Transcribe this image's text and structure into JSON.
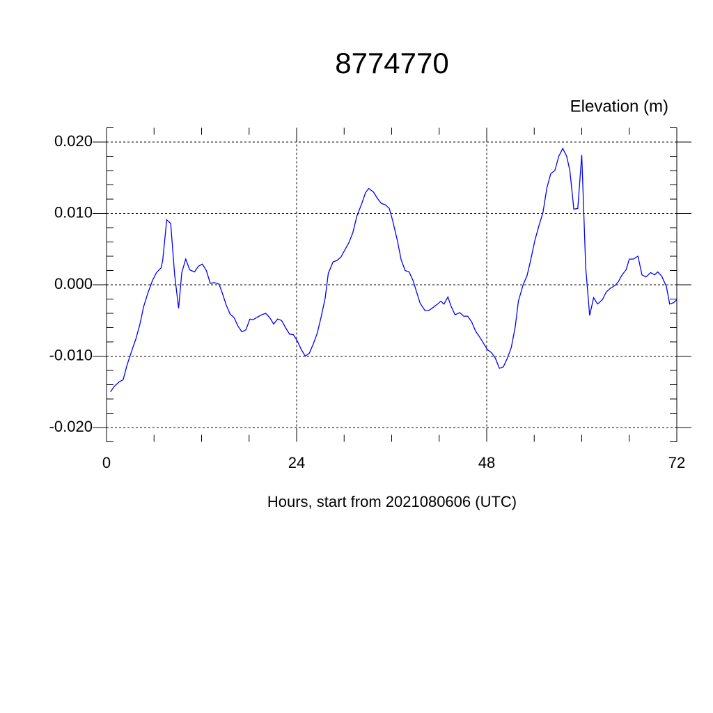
{
  "chart_data": {
    "type": "line",
    "title": "8774770",
    "ylabel": "Elevation (m)",
    "xlabel": "Hours, start from 2021080606 (UTC)",
    "xlim": [
      0,
      72
    ],
    "ylim": [
      -0.022,
      0.022
    ],
    "xticks": [
      0,
      24,
      48,
      72
    ],
    "yticks": [
      {
        "value": -0.02,
        "label": "-0.020"
      },
      {
        "value": -0.01,
        "label": "-0.010"
      },
      {
        "value": 0,
        "label": "0.000"
      },
      {
        "value": 0.01,
        "label": "0.010"
      },
      {
        "value": 0.02,
        "label": "0.020"
      }
    ],
    "xminorticks": [
      6,
      12,
      18,
      30,
      36,
      42,
      54,
      60,
      66
    ],
    "yminorticks": [
      -0.022,
      -0.018,
      -0.016,
      -0.014,
      -0.012,
      -0.008,
      -0.006,
      -0.004,
      -0.002,
      0.002,
      0.004,
      0.006,
      0.008,
      0.012,
      0.014,
      0.016,
      0.018,
      0.022
    ],
    "grid": true,
    "series": [
      {
        "color": "#0000ff",
        "x": [
          0.5,
          1.0,
          1.6,
          2.1,
          2.6,
          3.2,
          3.7,
          4.2,
          4.7,
          5.3,
          5.8,
          6.3,
          6.9,
          7.1,
          7.6,
          8.1,
          8.6,
          9.1,
          9.5,
          10.0,
          10.5,
          11.1,
          11.6,
          12.1,
          12.6,
          13.1,
          13.6,
          14.2,
          14.6,
          15.1,
          15.6,
          16.1,
          16.6,
          17.1,
          17.6,
          18.1,
          18.5,
          19.1,
          19.6,
          20.1,
          20.6,
          21.1,
          21.6,
          22.1,
          22.6,
          23.1,
          23.6,
          24.1,
          24.6,
          25.1,
          25.6,
          26.1,
          26.6,
          27.1,
          27.6,
          28.0,
          28.6,
          29.1,
          29.6,
          30.2,
          30.6,
          31.1,
          31.6,
          32.2,
          32.7,
          33.1,
          33.7,
          34.2,
          34.7,
          35.2,
          35.7,
          36.1,
          36.7,
          37.2,
          37.7,
          38.2,
          38.7,
          39.2,
          39.6,
          40.2,
          40.7,
          41.2,
          41.8,
          42.2,
          42.6,
          43.1,
          43.5,
          44.0,
          44.6,
          45.1,
          45.6,
          46.1,
          46.6,
          47.1,
          47.6,
          48.1,
          48.6,
          49.1,
          49.6,
          50.1,
          50.6,
          51.1,
          51.6,
          52.0,
          52.6,
          53.1,
          53.5,
          54.1,
          54.6,
          55.1,
          55.6,
          56.1,
          56.6,
          57.1,
          57.6,
          58.1,
          58.5,
          59.0,
          59.5,
          60.0,
          60.5,
          61.0,
          61.5,
          62.0,
          62.6,
          63.1,
          63.6,
          64.2,
          64.6,
          65.1,
          65.6,
          66.0,
          66.5,
          67.1,
          67.6,
          68.1,
          68.7,
          69.2,
          69.6,
          70.1,
          70.7,
          71.1,
          71.6,
          72.0
        ],
        "values": [
          -0.015,
          -0.0142,
          -0.0136,
          -0.0133,
          -0.0112,
          -0.0092,
          -0.0076,
          -0.0056,
          -0.003,
          -0.0009,
          0.0006,
          0.0017,
          0.0024,
          0.0035,
          0.0091,
          0.0086,
          0.0014,
          -0.0033,
          0.0017,
          0.0036,
          0.0021,
          0.0018,
          0.0026,
          0.0029,
          0.002,
          0.0002,
          0.0003,
          0.0001,
          -0.0011,
          -0.0028,
          -0.0041,
          -0.0046,
          -0.0058,
          -0.0066,
          -0.0063,
          -0.0048,
          -0.0049,
          -0.0045,
          -0.0042,
          -0.004,
          -0.0046,
          -0.0055,
          -0.0048,
          -0.005,
          -0.006,
          -0.0069,
          -0.007,
          -0.0079,
          -0.0091,
          -0.01,
          -0.0096,
          -0.0083,
          -0.0068,
          -0.0045,
          -0.0019,
          0.0016,
          0.0032,
          0.0034,
          0.0039,
          0.0051,
          0.0059,
          0.0073,
          0.0096,
          0.0113,
          0.0129,
          0.0135,
          0.013,
          0.0121,
          0.0114,
          0.0112,
          0.0107,
          0.0091,
          0.0063,
          0.0035,
          0.002,
          0.0018,
          0.0006,
          -0.0012,
          -0.0026,
          -0.0036,
          -0.0036,
          -0.0032,
          -0.0027,
          -0.0023,
          -0.0027,
          -0.0017,
          -0.003,
          -0.0042,
          -0.0039,
          -0.0044,
          -0.0044,
          -0.0052,
          -0.0065,
          -0.0073,
          -0.0082,
          -0.0091,
          -0.0095,
          -0.0103,
          -0.0117,
          -0.0115,
          -0.0103,
          -0.0088,
          -0.0059,
          -0.0023,
          0.0,
          0.0013,
          0.0032,
          0.0063,
          0.0083,
          0.0101,
          0.0136,
          0.0156,
          0.016,
          0.018,
          0.0191,
          0.018,
          0.016,
          0.0106,
          0.0107,
          0.0182,
          0.0024,
          -0.0043,
          -0.0018,
          -0.0027,
          -0.0021,
          -0.001,
          -0.0005,
          -0.0001,
          0.0004,
          0.0014,
          0.0021,
          0.0036,
          0.0036,
          0.004,
          0.0014,
          0.0011,
          0.0017,
          0.0014,
          0.0018,
          0.0012,
          -0.0003,
          -0.0027,
          -0.0025,
          -0.0021
        ]
      }
    ]
  }
}
